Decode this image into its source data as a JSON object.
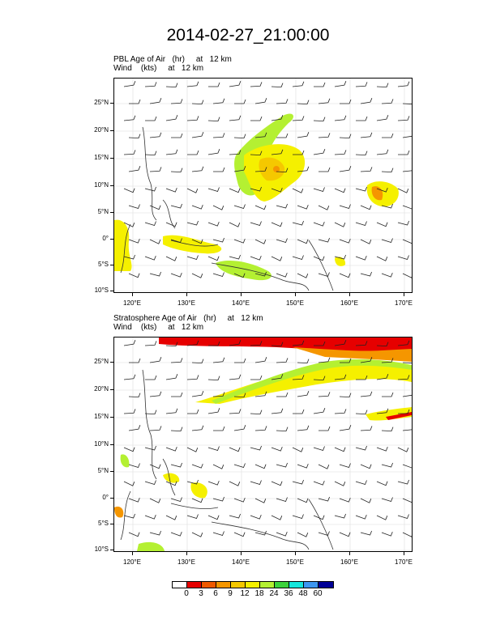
{
  "main_title": "2014-02-27_21:00:00",
  "panels": [
    {
      "title_line1": "PBL Age of Air   (hr)     at   12 km",
      "title_line2": "Wind    (kts)     at   12 km"
    },
    {
      "title_line1": "Stratosphere Age of Air   (hr)     at   12 km",
      "title_line2": "Wind    (kts)     at   12 km"
    }
  ],
  "lat_labels": [
    "25°N",
    "20°N",
    "15°N",
    "10°N",
    "5°N",
    "0°",
    "5°S",
    "10°S"
  ],
  "lon_labels": [
    "120°E",
    "130°E",
    "140°E",
    "150°E",
    "160°E",
    "170°E"
  ],
  "colorbar": {
    "colors": [
      "#ffffff",
      "#e60000",
      "#f05a00",
      "#f59600",
      "#f5c800",
      "#f5f000",
      "#b4f032",
      "#3cd23c",
      "#14e6dc",
      "#3c96f0",
      "#000096"
    ],
    "labels": [
      "0",
      "3",
      "6",
      "9",
      "12",
      "18",
      "24",
      "36",
      "48",
      "60"
    ]
  }
}
